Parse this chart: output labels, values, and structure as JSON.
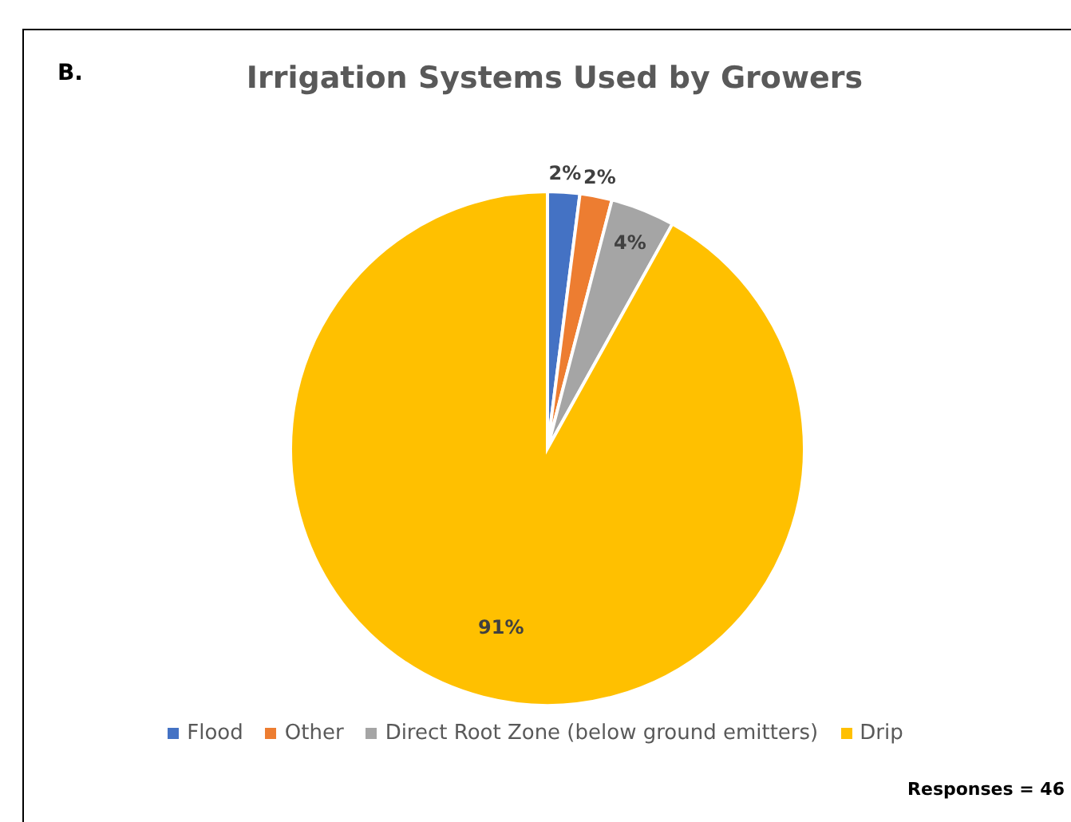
{
  "chart_data": {
    "type": "pie",
    "title": "Irrigation Systems Used by Growers",
    "categories": [
      "Flood",
      "Other",
      "Direct Root Zone (below ground emitters)",
      "Drip"
    ],
    "values": [
      2,
      2,
      4,
      91
    ],
    "value_labels": [
      "2%",
      "2%",
      "4%",
      "91%"
    ],
    "colors": [
      "#4472c4",
      "#ed7d31",
      "#a5a5a5",
      "#ffc000"
    ],
    "legend": "bottom",
    "annotations": [
      "B.",
      "Responses = 46"
    ]
  }
}
